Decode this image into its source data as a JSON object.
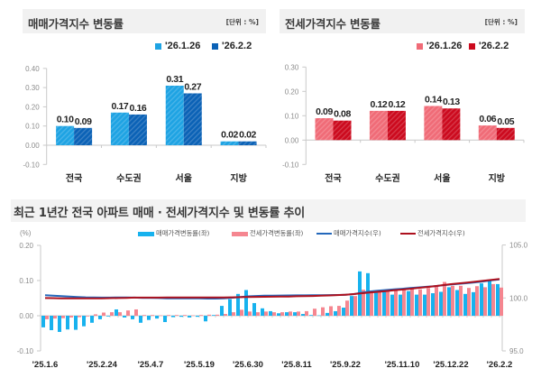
{
  "chart_data": [
    {
      "type": "bar",
      "title": "매매가격지수 변동률",
      "unit": "[단위 : %]",
      "categories": [
        "전국",
        "수도권",
        "서울",
        "지방"
      ],
      "series": [
        {
          "name": "'26.1.26",
          "color": "#1ea3e3",
          "values": [
            0.1,
            0.17,
            0.31,
            0.02
          ]
        },
        {
          "name": "'26.2.2",
          "color": "#0b62b6",
          "values": [
            0.09,
            0.16,
            0.27,
            0.02
          ]
        }
      ],
      "ylim": [
        -0.1,
        0.4
      ],
      "yticks": [
        "0.40",
        "0.30",
        "0.20",
        "0.10",
        "0.00",
        "-0.10"
      ],
      "xlabel": "",
      "ylabel": "",
      "legend": "top-right",
      "grid": false
    },
    {
      "type": "bar",
      "title": "전세가격지수 변동률",
      "unit": "[단위 : %]",
      "categories": [
        "전국",
        "수도권",
        "서울",
        "지방"
      ],
      "series": [
        {
          "name": "'26.1.26",
          "color": "#f06b77",
          "values": [
            0.09,
            0.12,
            0.14,
            0.06
          ]
        },
        {
          "name": "'26.2.2",
          "color": "#cc0a1e",
          "values": [
            0.08,
            0.12,
            0.13,
            0.05
          ]
        }
      ],
      "ylim": [
        -0.1,
        0.3
      ],
      "yticks": [
        "0.30",
        "0.20",
        "0.10",
        "0.00",
        "-0.10"
      ],
      "xlabel": "",
      "ylabel": "",
      "legend": "top-right",
      "grid": false
    },
    {
      "type": "bar+line",
      "title": "최근 1년간 전국 아파트 매매 · 전세가격지수 및 변동률 추이",
      "ylabel": "(%)",
      "ylim": [
        -0.1,
        0.2
      ],
      "yticks": [
        "0.20",
        "0.10",
        "0.00",
        "-0.10"
      ],
      "y2lim": [
        95.0,
        105.0
      ],
      "y2ticks": [
        "105.0",
        "100.0",
        "95.0"
      ],
      "x_count": 57,
      "xtick_index": [
        0,
        7,
        13,
        19,
        25,
        31,
        37,
        44,
        50,
        56
      ],
      "xtick_labels": [
        "'25.1.6",
        "'25.2.24",
        "'25.4.7",
        "'25.5.19",
        "'25.6.30",
        "'25.8.11",
        "'25.9.22",
        "'25.11.10",
        "'25.12.22",
        "'26.2.2"
      ],
      "legend": "top",
      "grid": false,
      "series": [
        {
          "name": "매매가격변동률(좌)",
          "type": "bar",
          "axis": "left",
          "color": "#17b2ee",
          "values": [
            -0.033,
            -0.041,
            -0.046,
            -0.039,
            -0.04,
            -0.03,
            -0.02,
            -0.01,
            -0.002,
            0.018,
            -0.005,
            -0.01,
            -0.02,
            -0.012,
            -0.008,
            -0.018,
            -0.004,
            -0.003,
            -0.005,
            -0.003,
            -0.016,
            0.002,
            0.028,
            0.047,
            0.062,
            0.073,
            0.036,
            0.021,
            0.013,
            0.007,
            0.01,
            0.01,
            0.005,
            0.002,
            0.001,
            0.008,
            0.013,
            0.023,
            0.056,
            0.126,
            0.121,
            0.07,
            0.068,
            0.06,
            0.06,
            0.07,
            0.06,
            0.06,
            0.064,
            0.068,
            0.081,
            0.073,
            0.062,
            0.067,
            0.092,
            0.1,
            0.09
          ]
        },
        {
          "name": "전세가격변동률(좌)",
          "type": "bar",
          "axis": "left",
          "color": "#f58690",
          "values": [
            -0.01,
            -0.008,
            -0.007,
            -0.005,
            -0.004,
            -0.002,
            0.004,
            0.009,
            0.01,
            0.01,
            0.015,
            0.018,
            0.002,
            0.002,
            0.001,
            0.002,
            0.002,
            0.002,
            0.001,
            0.002,
            0.003,
            0.003,
            0.005,
            0.01,
            0.017,
            0.012,
            0.01,
            0.012,
            0.01,
            0.01,
            0.012,
            0.012,
            0.013,
            0.02,
            0.024,
            0.027,
            0.028,
            0.043,
            0.056,
            0.074,
            0.068,
            0.068,
            0.07,
            0.073,
            0.073,
            0.081,
            0.075,
            0.079,
            0.087,
            0.096,
            0.085,
            0.085,
            0.079,
            0.084,
            0.081,
            0.09,
            0.08
          ]
        },
        {
          "name": "매매가격지수(우)",
          "type": "line",
          "axis": "right",
          "color": "#2468bb",
          "values": [
            100.26,
            100.22,
            100.17,
            100.13,
            100.09,
            100.06,
            100.04,
            100.03,
            100.03,
            100.05,
            100.04,
            100.03,
            100.01,
            100.0,
            99.99,
            99.97,
            99.97,
            99.97,
            99.96,
            99.96,
            99.94,
            99.94,
            99.97,
            100.02,
            100.08,
            100.15,
            100.19,
            100.21,
            100.22,
            100.23,
            100.24,
            100.25,
            100.25,
            100.26,
            100.26,
            100.27,
            100.28,
            100.3,
            100.36,
            100.49,
            100.61,
            100.68,
            100.75,
            100.81,
            100.87,
            100.94,
            101.0,
            101.06,
            101.12,
            101.19,
            101.27,
            101.34,
            101.4,
            101.47,
            101.56,
            101.66,
            101.75
          ]
        },
        {
          "name": "전세가격지수(우)",
          "type": "line",
          "axis": "right",
          "color": "#ad111e",
          "values": [
            99.99,
            99.98,
            99.97,
            99.97,
            99.96,
            99.96,
            99.97,
            99.97,
            99.98,
            99.99,
            100.01,
            100.03,
            100.03,
            100.03,
            100.03,
            100.04,
            100.04,
            100.04,
            100.04,
            100.04,
            100.05,
            100.05,
            100.05,
            100.06,
            100.08,
            100.09,
            100.1,
            100.11,
            100.12,
            100.13,
            100.14,
            100.16,
            100.17,
            100.19,
            100.21,
            100.24,
            100.27,
            100.31,
            100.37,
            100.44,
            100.51,
            100.58,
            100.65,
            100.72,
            100.79,
            100.87,
            100.95,
            101.03,
            101.12,
            101.21,
            101.3,
            101.38,
            101.46,
            101.54,
            101.62,
            101.71,
            101.79
          ]
        }
      ]
    }
  ]
}
